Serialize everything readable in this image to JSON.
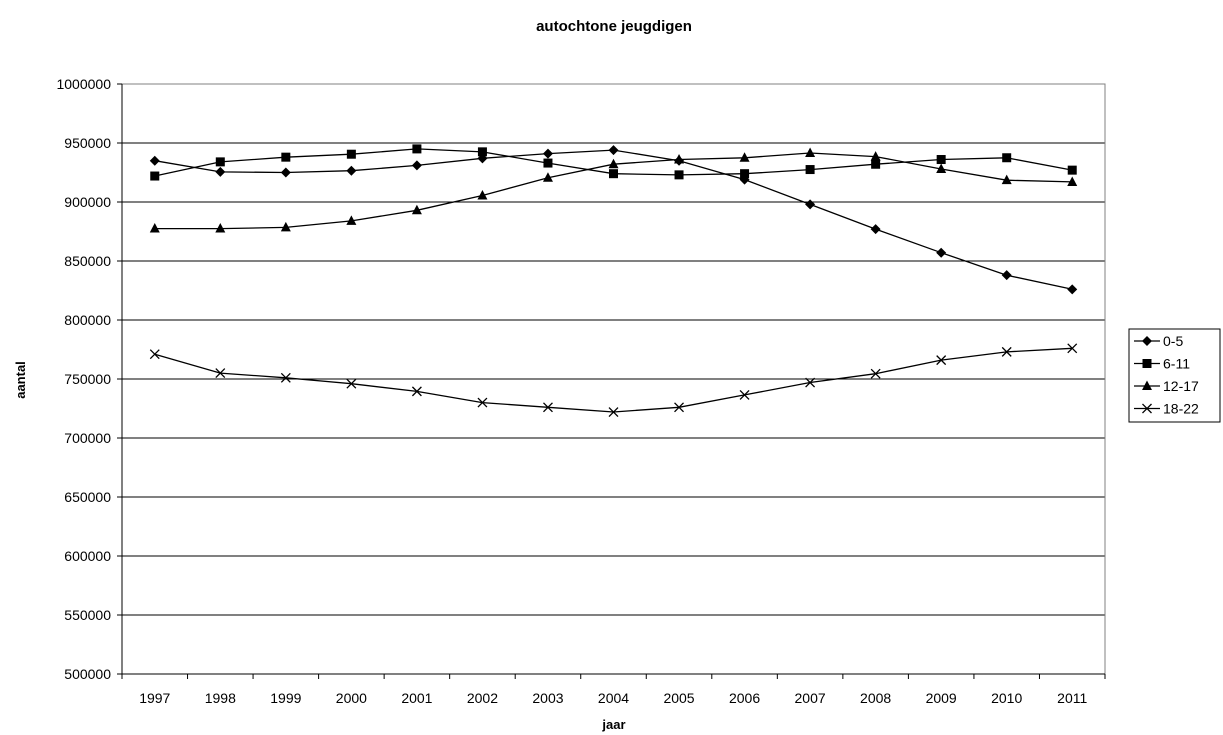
{
  "chart_data": {
    "type": "line",
    "title": "autochtone jeugdigen",
    "xlabel": "jaar",
    "ylabel": "aantal",
    "x": [
      "1997",
      "1998",
      "1999",
      "2000",
      "2001",
      "2002",
      "2003",
      "2004",
      "2005",
      "2006",
      "2007",
      "2008",
      "2009",
      "2010",
      "2011"
    ],
    "ylim": [
      500000,
      1000000
    ],
    "yticks": [
      "500000",
      "550000",
      "600000",
      "650000",
      "700000",
      "750000",
      "800000",
      "850000",
      "900000",
      "950000",
      "1000000"
    ],
    "grid": true,
    "legend_position": "right",
    "series": [
      {
        "name": "0-5",
        "marker": "diamond",
        "values": [
          935000,
          925500,
          925000,
          926500,
          931000,
          937000,
          941000,
          944000,
          935000,
          919000,
          898000,
          877000,
          857000,
          838000,
          826000
        ]
      },
      {
        "name": "6-11",
        "marker": "square",
        "values": [
          922000,
          934000,
          938000,
          940500,
          945000,
          942500,
          933000,
          924000,
          923000,
          924000,
          927500,
          932000,
          936000,
          937500,
          927000
        ]
      },
      {
        "name": "12-17",
        "marker": "triangle",
        "values": [
          877500,
          877500,
          878500,
          884000,
          893000,
          905500,
          920500,
          932000,
          936000,
          937500,
          941500,
          938500,
          928000,
          918500,
          917000
        ]
      },
      {
        "name": "18-22",
        "marker": "x",
        "values": [
          771000,
          755000,
          751000,
          746000,
          739500,
          730000,
          726000,
          722000,
          726000,
          736500,
          747000,
          754500,
          766000,
          773000,
          776000
        ]
      }
    ],
    "colors": {
      "line": "#000000",
      "grid": "#000000",
      "plot_border": "#808080",
      "background": "#ffffff"
    }
  }
}
